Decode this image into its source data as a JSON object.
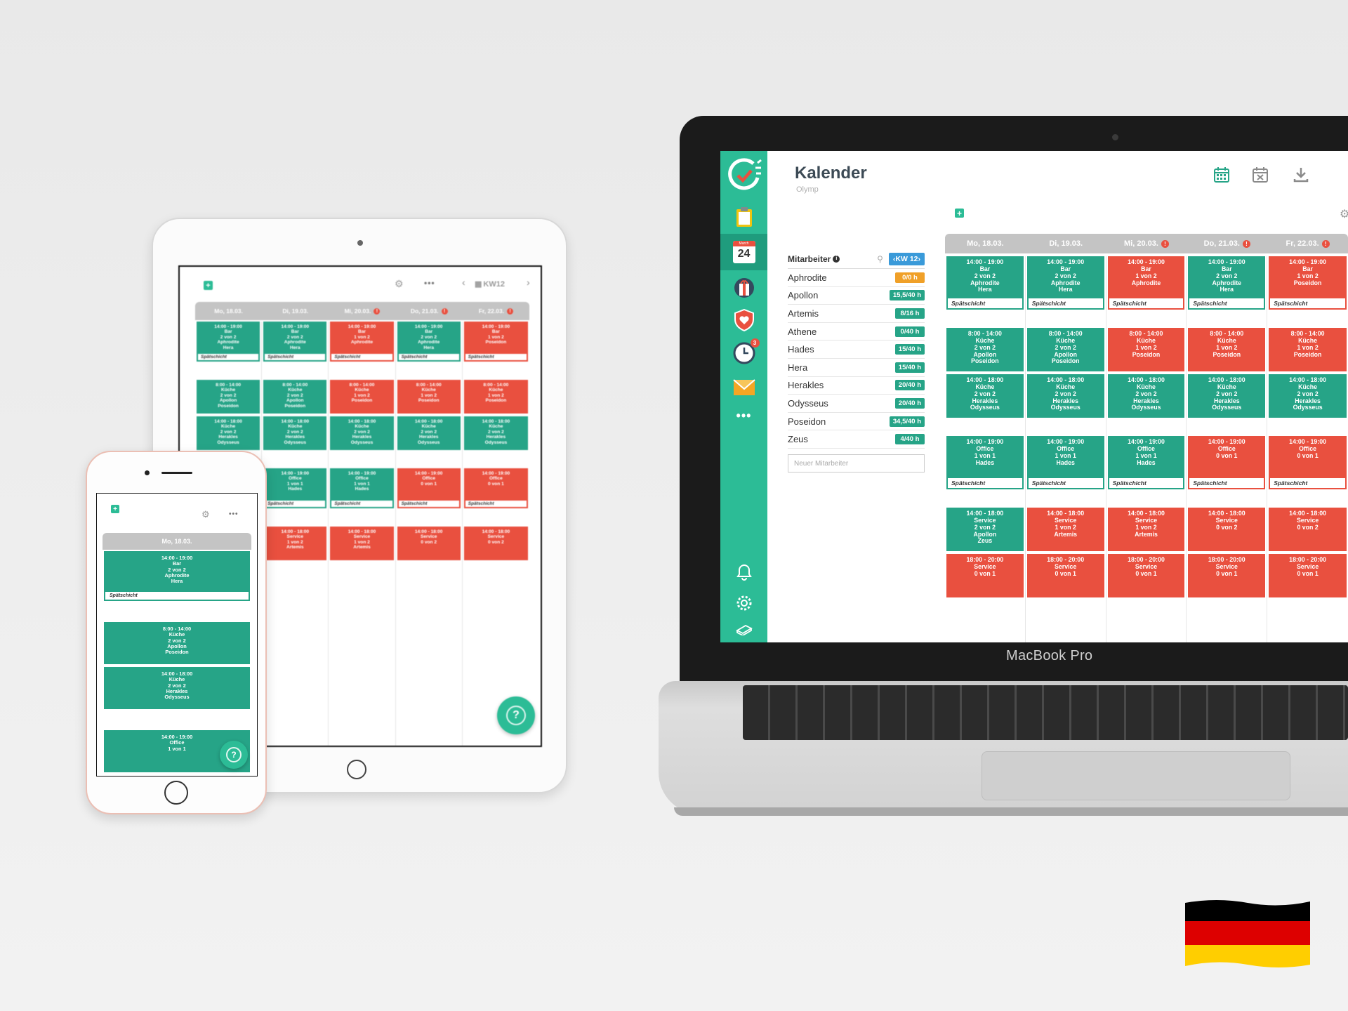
{
  "brand": {
    "colors": {
      "green": "#26a487",
      "red": "#e9503f",
      "sidebar": "#2cbc96",
      "orange": "#f0a028",
      "blue": "#3a9ad9"
    }
  },
  "laptop": {
    "label": "MacBook Pro",
    "header": {
      "title": "Kalender",
      "subtitle": "Olymp",
      "actions": [
        "calendar-icon",
        "calendar-x-icon",
        "download-icon"
      ]
    },
    "sidebar": {
      "icons": [
        "logo-icon",
        "clipboard-icon",
        "calendar-day-icon",
        "gift-icon",
        "heart-shield-icon",
        "clock-icon",
        "mail-icon",
        "more-icon",
        "bell-icon",
        "gear-icon",
        "book-icon"
      ],
      "calendar_day": "24",
      "calendar_month": "March",
      "clock_badge": "3"
    },
    "staff": {
      "heading": "Mitarbeiter",
      "week_button": "‹KW 12›",
      "placeholder": "Neuer Mitarbeiter",
      "employees": [
        {
          "name": "Aphrodite",
          "hours": "0/0 h",
          "color": "orange"
        },
        {
          "name": "Apollon",
          "hours": "15,5/40 h",
          "color": "green"
        },
        {
          "name": "Artemis",
          "hours": "8/16 h",
          "color": "green"
        },
        {
          "name": "Athene",
          "hours": "0/40 h",
          "color": "green"
        },
        {
          "name": "Hades",
          "hours": "15/40 h",
          "color": "green"
        },
        {
          "name": "Hera",
          "hours": "15/40 h",
          "color": "green"
        },
        {
          "name": "Herakles",
          "hours": "20/40 h",
          "color": "green"
        },
        {
          "name": "Odysseus",
          "hours": "20/40 h",
          "color": "green"
        },
        {
          "name": "Poseidon",
          "hours": "34,5/40 h",
          "color": "green"
        },
        {
          "name": "Zeus",
          "hours": "4/40 h",
          "color": "green"
        }
      ]
    },
    "days": [
      {
        "label": "Mo, 18.03.",
        "badge": ""
      },
      {
        "label": "Di, 19.03.",
        "badge": ""
      },
      {
        "label": "Mi, 20.03.",
        "badge": "!"
      },
      {
        "label": "Do, 21.03.",
        "badge": "!"
      },
      {
        "label": "Fr, 22.03.",
        "badge": "!"
      }
    ],
    "columns": [
      [
        {
          "status": "ok",
          "lines": [
            "14:00 - 19:00",
            "Bar",
            "2 von 2",
            "Aphrodite",
            "Hera"
          ],
          "tag": "Spätschicht"
        },
        {
          "gap": true
        },
        {
          "status": "ok",
          "lines": [
            "8:00 - 14:00",
            "Küche",
            "2 von 2",
            "Apollon",
            "Poseidon"
          ]
        },
        {
          "status": "ok",
          "lines": [
            "14:00 - 18:00",
            "Küche",
            "2 von 2",
            "Herakles",
            "Odysseus"
          ]
        },
        {
          "gap": true
        },
        {
          "status": "ok",
          "lines": [
            "14:00 - 19:00",
            "Office",
            "1 von 1",
            "Hades"
          ],
          "tag": "Spätschicht"
        },
        {
          "gap": true
        },
        {
          "status": "ok",
          "lines": [
            "14:00 - 18:00",
            "Service",
            "2 von 2",
            "Apollon",
            "Zeus"
          ]
        },
        {
          "status": "bad",
          "lines": [
            "18:00 - 20:00",
            "Service",
            "0 von 1"
          ]
        }
      ],
      [
        {
          "status": "ok",
          "lines": [
            "14:00 - 19:00",
            "Bar",
            "2 von 2",
            "Aphrodite",
            "Hera"
          ],
          "tag": "Spätschicht"
        },
        {
          "gap": true
        },
        {
          "status": "ok",
          "lines": [
            "8:00 - 14:00",
            "Küche",
            "2 von 2",
            "Apollon",
            "Poseidon"
          ]
        },
        {
          "status": "ok",
          "lines": [
            "14:00 - 18:00",
            "Küche",
            "2 von 2",
            "Herakles",
            "Odysseus"
          ]
        },
        {
          "gap": true
        },
        {
          "status": "ok",
          "lines": [
            "14:00 - 19:00",
            "Office",
            "1 von 1",
            "Hades"
          ],
          "tag": "Spätschicht"
        },
        {
          "gap": true
        },
        {
          "status": "bad",
          "lines": [
            "14:00 - 18:00",
            "Service",
            "1 von 2",
            "Artemis"
          ]
        },
        {
          "status": "bad",
          "lines": [
            "18:00 - 20:00",
            "Service",
            "0 von 1"
          ]
        }
      ],
      [
        {
          "status": "bad",
          "lines": [
            "14:00 - 19:00",
            "Bar",
            "1 von 2",
            "Aphrodite"
          ],
          "tag": "Spätschicht"
        },
        {
          "gap": true
        },
        {
          "status": "bad",
          "lines": [
            "8:00 - 14:00",
            "Küche",
            "1 von 2",
            "Poseidon"
          ]
        },
        {
          "status": "ok",
          "lines": [
            "14:00 - 18:00",
            "Küche",
            "2 von 2",
            "Herakles",
            "Odysseus"
          ]
        },
        {
          "gap": true
        },
        {
          "status": "ok",
          "lines": [
            "14:00 - 19:00",
            "Office",
            "1 von 1",
            "Hades"
          ],
          "tag": "Spätschicht"
        },
        {
          "gap": true
        },
        {
          "status": "bad",
          "lines": [
            "14:00 - 18:00",
            "Service",
            "1 von 2",
            "Artemis"
          ]
        },
        {
          "status": "bad",
          "lines": [
            "18:00 - 20:00",
            "Service",
            "0 von 1"
          ]
        }
      ],
      [
        {
          "status": "ok",
          "lines": [
            "14:00 - 19:00",
            "Bar",
            "2 von 2",
            "Aphrodite",
            "Hera"
          ],
          "tag": "Spätschicht"
        },
        {
          "gap": true
        },
        {
          "status": "bad",
          "lines": [
            "8:00 - 14:00",
            "Küche",
            "1 von 2",
            "Poseidon"
          ]
        },
        {
          "status": "ok",
          "lines": [
            "14:00 - 18:00",
            "Küche",
            "2 von 2",
            "Herakles",
            "Odysseus"
          ]
        },
        {
          "gap": true
        },
        {
          "status": "bad",
          "lines": [
            "14:00 - 19:00",
            "Office",
            "0 von 1"
          ],
          "tag": "Spätschicht"
        },
        {
          "gap": true
        },
        {
          "status": "bad",
          "lines": [
            "14:00 - 18:00",
            "Service",
            "0 von 2"
          ]
        },
        {
          "status": "bad",
          "lines": [
            "18:00 - 20:00",
            "Service",
            "0 von 1"
          ]
        }
      ],
      [
        {
          "status": "bad",
          "lines": [
            "14:00 - 19:00",
            "Bar",
            "1 von 2",
            "Poseidon"
          ],
          "tag": "Spätschicht"
        },
        {
          "gap": true
        },
        {
          "status": "bad",
          "lines": [
            "8:00 - 14:00",
            "Küche",
            "1 von 2",
            "Poseidon"
          ]
        },
        {
          "status": "ok",
          "lines": [
            "14:00 - 18:00",
            "Küche",
            "2 von 2",
            "Herakles",
            "Odysseus"
          ]
        },
        {
          "gap": true
        },
        {
          "status": "bad",
          "lines": [
            "14:00 - 19:00",
            "Office",
            "0 von 1"
          ],
          "tag": "Spätschicht"
        },
        {
          "gap": true
        },
        {
          "status": "bad",
          "lines": [
            "14:00 - 18:00",
            "Service",
            "0 von 2"
          ]
        },
        {
          "status": "bad",
          "lines": [
            "18:00 - 20:00",
            "Service",
            "0 von 1"
          ]
        }
      ]
    ]
  },
  "tablet": {
    "week": "KW12",
    "days": [
      {
        "label": "Mo, 18.03.",
        "badge": ""
      },
      {
        "label": "Di, 19.03.",
        "badge": ""
      },
      {
        "label": "Mi, 20.03.",
        "badge": "!"
      },
      {
        "label": "Do, 21.03.",
        "badge": "!"
      },
      {
        "label": "Fr, 22.03.",
        "badge": "!"
      }
    ],
    "help": "?",
    "columns": [
      [
        {
          "status": "ok",
          "lines": [
            "14:00 - 19:00",
            "Bar",
            "2 von 2",
            "Aphrodite",
            "Hera"
          ],
          "tag": "Spätschicht"
        },
        {
          "gap": true
        },
        {
          "status": "ok",
          "lines": [
            "8:00 - 14:00",
            "Küche",
            "2 von 2",
            "Apollon",
            "Poseidon"
          ]
        },
        {
          "status": "ok",
          "lines": [
            "14:00 - 18:00",
            "Küche",
            "2 von 2",
            "Herakles",
            "Odysseus"
          ]
        }
      ],
      [
        {
          "status": "ok",
          "lines": [
            "14:00 - 19:00",
            "Bar",
            "2 von 2",
            "Aphrodite",
            "Hera"
          ],
          "tag": "Spätschicht"
        },
        {
          "gap": true
        },
        {
          "status": "ok",
          "lines": [
            "8:00 - 14:00",
            "Küche",
            "2 von 2",
            "Apollon",
            "Poseidon"
          ]
        },
        {
          "status": "ok",
          "lines": [
            "14:00 - 18:00",
            "Küche",
            "2 von 2",
            "Herakles",
            "Odysseus"
          ]
        },
        {
          "gap": true
        },
        {
          "status": "ok",
          "lines": [
            "14:00 - 19:00",
            "Office",
            "1 von 1",
            "Hades"
          ],
          "tag": "Spätschicht"
        },
        {
          "gap": true
        },
        {
          "status": "bad",
          "lines": [
            "14:00 - 18:00",
            "Service",
            "1 von 2",
            "Artemis"
          ]
        }
      ],
      [
        {
          "status": "bad",
          "lines": [
            "14:00 - 19:00",
            "Bar",
            "1 von 2",
            "Aphrodite"
          ],
          "tag": "Spätschicht"
        },
        {
          "gap": true
        },
        {
          "status": "bad",
          "lines": [
            "8:00 - 14:00",
            "Küche",
            "1 von 2",
            "Poseidon"
          ]
        },
        {
          "status": "ok",
          "lines": [
            "14:00 - 18:00",
            "Küche",
            "2 von 2",
            "Herakles",
            "Odysseus"
          ]
        },
        {
          "gap": true
        },
        {
          "status": "ok",
          "lines": [
            "14:00 - 19:00",
            "Office",
            "1 von 1",
            "Hades"
          ],
          "tag": "Spätschicht"
        },
        {
          "gap": true
        },
        {
          "status": "bad",
          "lines": [
            "14:00 - 18:00",
            "Service",
            "1 von 2",
            "Artemis"
          ]
        }
      ],
      [
        {
          "status": "ok",
          "lines": [
            "14:00 - 19:00",
            "Bar",
            "2 von 2",
            "Aphrodite",
            "Hera"
          ],
          "tag": "Spätschicht"
        },
        {
          "gap": true
        },
        {
          "status": "bad",
          "lines": [
            "8:00 - 14:00",
            "Küche",
            "1 von 2",
            "Poseidon"
          ]
        },
        {
          "status": "ok",
          "lines": [
            "14:00 - 18:00",
            "Küche",
            "2 von 2",
            "Herakles",
            "Odysseus"
          ]
        },
        {
          "gap": true
        },
        {
          "status": "bad",
          "lines": [
            "14:00 - 19:00",
            "Office",
            "0 von 1"
          ],
          "tag": "Spätschicht"
        },
        {
          "gap": true
        },
        {
          "status": "bad",
          "lines": [
            "14:00 - 18:00",
            "Service",
            "0 von 2"
          ]
        }
      ],
      [
        {
          "status": "bad",
          "lines": [
            "14:00 - 19:00",
            "Bar",
            "1 von 2",
            "Poseidon"
          ],
          "tag": "Spätschicht"
        },
        {
          "gap": true
        },
        {
          "status": "bad",
          "lines": [
            "8:00 - 14:00",
            "Küche",
            "1 von 2",
            "Poseidon"
          ]
        },
        {
          "status": "ok",
          "lines": [
            "14:00 - 18:00",
            "Küche",
            "2 von 2",
            "Herakles",
            "Odysseus"
          ]
        },
        {
          "gap": true
        },
        {
          "status": "bad",
          "lines": [
            "14:00 - 19:00",
            "Office",
            "0 von 1"
          ],
          "tag": "Spätschicht"
        },
        {
          "gap": true
        },
        {
          "status": "bad",
          "lines": [
            "14:00 - 18:00",
            "Service",
            "0 von 2"
          ]
        }
      ]
    ]
  },
  "phone": {
    "day": "Mo, 18.03.",
    "help": "?",
    "shifts": [
      {
        "status": "ok",
        "lines": [
          "14:00 - 19:00",
          "Bar",
          "2 von 2",
          "Aphrodite",
          "Hera"
        ],
        "tag": "Spätschicht"
      },
      {
        "gap": true
      },
      {
        "status": "ok",
        "lines": [
          "8:00 - 14:00",
          "Küche",
          "2 von 2",
          "Apollon",
          "Poseidon"
        ]
      },
      {
        "status": "ok",
        "lines": [
          "14:00 - 18:00",
          "Küche",
          "2 von 2",
          "Herakles",
          "Odysseus"
        ]
      },
      {
        "gap": true
      },
      {
        "status": "ok",
        "lines": [
          "14:00 - 19:00",
          "Office",
          "1 von 1"
        ]
      }
    ]
  },
  "flag": {
    "name": "germany-flag",
    "colors": [
      "#000000",
      "#dd0000",
      "#ffce00"
    ]
  }
}
